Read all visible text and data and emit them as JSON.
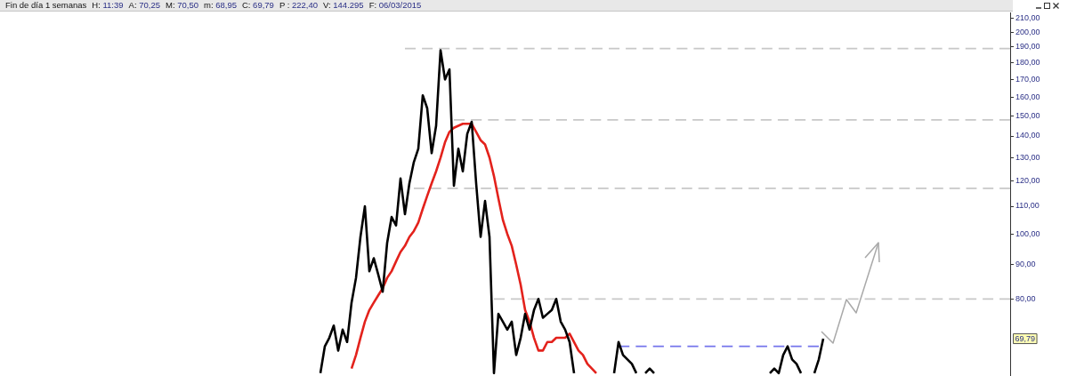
{
  "chart_data": {
    "type": "line",
    "title": "Fin de día 1 semanas",
    "annotations": [
      "H: 11:39",
      "A: 70,25",
      "M: 70,50",
      "m: 68,95",
      "C: 69,79",
      "P : 222,40",
      "V: 144.295",
      "F: 06/03/2015",
      {
        "text": "69,79",
        "y": 69.79
      }
    ],
    "log": true,
    "tick_labels": "y",
    "marker": "none",
    "ylim": [
      61.4,
      214
    ],
    "yticks": [
      {
        "value": 80,
        "label": "80,00"
      },
      {
        "value": 90,
        "label": "90,00"
      },
      {
        "value": 100,
        "label": "100,00"
      },
      {
        "value": 110,
        "label": "110,00"
      },
      {
        "value": 120,
        "label": "120,00"
      },
      {
        "value": 130,
        "label": "130,00"
      },
      {
        "value": 140,
        "label": "140,00"
      },
      {
        "value": 150,
        "label": "150,00"
      },
      {
        "value": 160,
        "label": "160,00"
      },
      {
        "value": 170,
        "label": "170,00"
      },
      {
        "value": 180,
        "label": "180,00"
      },
      {
        "value": 190,
        "label": "190,00"
      },
      {
        "value": 200,
        "label": "200,00"
      },
      {
        "value": 210,
        "label": "210,00"
      }
    ],
    "categories": [
      null,
      null,
      null,
      null,
      null,
      null,
      null,
      null,
      null,
      null,
      null,
      null,
      null,
      null,
      null,
      null,
      null,
      null,
      null,
      null,
      null,
      null,
      null,
      null,
      null,
      null,
      null,
      null,
      null,
      null,
      null,
      null,
      null,
      null,
      null,
      null,
      null,
      null,
      null,
      null,
      null,
      null,
      null,
      null,
      null,
      null,
      null,
      null,
      null,
      null,
      null,
      null,
      null,
      null,
      null,
      null,
      null,
      null,
      null,
      null,
      null,
      null,
      null,
      null,
      null,
      null,
      null,
      null,
      null,
      null,
      null,
      null,
      null,
      null,
      null,
      null,
      null,
      null,
      null,
      null,
      null,
      null,
      null,
      null,
      null,
      null,
      null,
      null,
      null,
      null,
      null,
      null,
      null,
      null,
      null,
      null,
      null,
      null,
      null,
      null,
      null,
      null,
      null,
      null,
      null,
      null,
      null,
      null,
      null,
      null,
      null,
      null,
      null,
      null,
      null,
      null,
      null,
      null,
      null,
      null,
      null,
      null,
      null,
      null,
      null,
      null,
      null,
      null,
      null,
      null,
      null,
      null,
      null,
      null,
      null,
      null,
      null,
      null,
      null,
      null,
      null,
      null,
      null,
      null,
      null,
      null,
      null,
      null,
      null,
      null,
      null,
      null,
      null,
      null,
      null,
      null,
      null,
      null,
      null,
      null,
      null,
      null,
      null,
      null,
      null,
      null,
      null,
      null,
      null,
      null,
      null,
      null,
      null,
      null,
      null,
      null,
      null,
      null,
      null,
      null,
      null,
      null,
      null,
      null,
      null,
      null,
      null,
      null,
      null,
      null,
      null,
      null,
      null,
      null,
      null,
      null,
      null,
      null,
      null,
      null,
      null,
      null,
      null,
      null,
      null,
      null,
      null,
      null,
      null,
      null,
      null,
      null,
      null,
      null,
      null,
      null,
      null,
      null,
      null,
      null,
      null,
      null,
      null,
      null,
      null,
      null,
      null,
      null
    ],
    "series": [
      {
        "color": "#000000",
        "values": [
          null,
          null,
          null,
          null,
          null,
          null,
          null,
          null,
          null,
          null,
          null,
          null,
          null,
          null,
          null,
          null,
          null,
          null,
          null,
          null,
          null,
          null,
          null,
          null,
          null,
          null,
          null,
          null,
          null,
          null,
          null,
          null,
          null,
          null,
          null,
          null,
          null,
          null,
          null,
          null,
          null,
          null,
          null,
          null,
          null,
          null,
          null,
          null,
          null,
          null,
          null,
          null,
          null,
          null,
          null,
          null,
          null,
          null,
          null,
          null,
          null,
          null,
          null,
          null,
          null,
          null,
          null,
          null,
          null,
          null,
          null,
          null,
          62,
          68,
          70,
          73,
          67,
          72,
          69,
          79,
          86,
          99,
          110,
          88,
          92,
          87,
          82,
          97,
          106,
          103,
          121,
          107,
          119,
          128,
          134,
          161,
          154,
          132,
          145,
          188,
          170,
          176,
          118,
          134,
          124,
          141,
          147,
          119,
          99,
          112,
          99,
          62,
          76,
          74,
          72,
          74,
          66,
          70,
          76,
          72,
          77,
          80,
          75,
          76,
          77,
          80,
          74,
          72,
          69,
          62,
          null,
          null,
          null,
          null,
          null,
          null,
          null,
          null,
          62,
          69,
          66,
          65,
          64,
          62,
          null,
          62,
          63,
          62,
          null,
          null,
          null,
          null,
          null,
          null,
          null,
          null,
          null,
          null,
          null,
          null,
          null,
          null,
          null,
          null,
          null,
          null,
          null,
          null,
          null,
          null,
          null,
          null,
          null,
          62,
          63,
          62,
          66,
          68,
          65,
          64,
          62,
          null,
          null,
          62,
          65,
          69.79,
          null,
          null,
          null,
          null,
          null,
          null,
          null,
          null,
          null,
          null,
          null,
          null,
          null,
          null,
          null,
          null,
          null,
          null,
          null,
          null,
          null,
          null,
          null,
          null,
          null,
          null,
          null,
          null,
          null,
          null,
          null,
          null,
          null,
          null,
          null,
          null,
          null,
          null,
          null,
          null,
          null,
          null
        ]
      },
      {
        "color": "#e3221c",
        "values": [
          null,
          null,
          null,
          null,
          null,
          null,
          null,
          null,
          null,
          null,
          null,
          null,
          null,
          null,
          null,
          null,
          null,
          null,
          null,
          null,
          null,
          null,
          null,
          null,
          null,
          null,
          null,
          null,
          null,
          null,
          null,
          null,
          null,
          null,
          null,
          null,
          null,
          null,
          null,
          null,
          null,
          null,
          null,
          null,
          null,
          null,
          null,
          null,
          null,
          null,
          null,
          null,
          null,
          null,
          null,
          null,
          null,
          null,
          null,
          null,
          null,
          null,
          null,
          null,
          null,
          null,
          null,
          null,
          null,
          null,
          null,
          null,
          null,
          null,
          null,
          null,
          null,
          null,
          null,
          63,
          66,
          70,
          74,
          77,
          79,
          81,
          83,
          86,
          88,
          91,
          94,
          96,
          99,
          101,
          104,
          109,
          114,
          119,
          124,
          130,
          137,
          142,
          144,
          145,
          146,
          146,
          146,
          142,
          138,
          136,
          130,
          122,
          113,
          105,
          100,
          96,
          90,
          84,
          77,
          74,
          70,
          67,
          67,
          69,
          69,
          70,
          70,
          70,
          71,
          69,
          67,
          66,
          64,
          63,
          62,
          null,
          null,
          null,
          null,
          null,
          null,
          null,
          null,
          null,
          null,
          null,
          null,
          null,
          null,
          null,
          null,
          null,
          null,
          null,
          null,
          null,
          null,
          null,
          null,
          null,
          null,
          null,
          null,
          null,
          null,
          null,
          null,
          null,
          null,
          null,
          null,
          null,
          null,
          null,
          null,
          null,
          null,
          null,
          null,
          null,
          null,
          null,
          null,
          null,
          null,
          null,
          null,
          null,
          null,
          null,
          null,
          null,
          null,
          null,
          null,
          null,
          null,
          null,
          null,
          null,
          null,
          null,
          null,
          null,
          null,
          null,
          null,
          null,
          null,
          null,
          null,
          null,
          null,
          null,
          null,
          null,
          null,
          null,
          null,
          null,
          null,
          null,
          null,
          null,
          null,
          null,
          null,
          null
        ]
      },
      {
        "color": "#c8c8c8",
        "line_style": "dashed",
        "values": [
          null,
          null,
          null,
          null,
          null,
          null,
          null,
          null,
          null,
          null,
          null,
          null,
          null,
          null,
          null,
          null,
          null,
          null,
          null,
          null,
          null,
          null,
          null,
          null,
          null,
          null,
          null,
          null,
          null,
          null,
          null,
          null,
          null,
          null,
          null,
          null,
          null,
          null,
          null,
          null,
          null,
          null,
          null,
          null,
          null,
          null,
          null,
          null,
          null,
          null,
          null,
          null,
          null,
          null,
          null,
          null,
          null,
          null,
          null,
          null,
          null,
          null,
          null,
          null,
          null,
          null,
          null,
          null,
          null,
          null,
          null,
          null,
          null,
          null,
          null,
          null,
          null,
          null,
          null,
          null,
          null,
          null,
          null,
          null,
          null,
          null,
          null,
          null,
          null,
          null,
          null,
          189,
          189,
          189,
          189,
          189,
          189,
          189,
          189,
          189,
          189,
          189,
          189,
          189,
          189,
          189,
          189,
          189,
          189,
          189,
          189,
          189,
          189,
          189,
          189,
          189,
          189,
          189,
          189,
          189,
          189,
          189,
          189,
          189,
          189,
          189,
          189,
          189,
          189,
          189,
          189,
          189,
          189,
          189,
          189,
          189,
          189,
          189,
          189,
          189,
          189,
          189,
          189,
          189,
          189,
          189,
          189,
          189,
          189,
          189,
          189,
          189,
          189,
          189,
          189,
          189,
          189,
          189,
          189,
          189,
          189,
          189,
          189,
          189,
          189,
          189,
          189,
          189,
          189,
          189,
          189,
          189,
          189,
          189,
          189,
          189,
          189,
          189,
          189,
          189,
          189,
          189,
          189,
          189,
          189,
          189,
          189,
          189,
          189,
          189,
          189,
          189,
          189,
          189,
          189,
          189,
          189,
          189,
          189,
          189,
          189,
          189,
          189,
          189,
          189,
          189,
          189,
          189,
          189,
          189,
          189,
          189,
          189,
          189,
          189,
          189,
          189,
          189,
          189,
          189,
          189,
          189,
          189,
          189,
          189,
          189,
          189,
          189
        ]
      },
      {
        "color": "#c8c8c8",
        "line_style": "dashed",
        "values": [
          null,
          null,
          null,
          null,
          null,
          null,
          null,
          null,
          null,
          null,
          null,
          null,
          null,
          null,
          null,
          null,
          null,
          null,
          null,
          null,
          null,
          null,
          null,
          null,
          null,
          null,
          null,
          null,
          null,
          null,
          null,
          null,
          null,
          null,
          null,
          null,
          null,
          null,
          null,
          null,
          null,
          null,
          null,
          null,
          null,
          null,
          null,
          null,
          null,
          null,
          null,
          null,
          null,
          null,
          null,
          null,
          null,
          null,
          null,
          null,
          null,
          null,
          null,
          null,
          null,
          null,
          null,
          null,
          null,
          null,
          null,
          null,
          null,
          null,
          null,
          null,
          null,
          null,
          null,
          null,
          null,
          null,
          null,
          null,
          null,
          null,
          null,
          null,
          null,
          null,
          null,
          null,
          null,
          null,
          null,
          null,
          null,
          null,
          null,
          null,
          null,
          null,
          148,
          148,
          148,
          148,
          148,
          148,
          148,
          148,
          148,
          148,
          148,
          148,
          148,
          148,
          148,
          148,
          148,
          148,
          148,
          148,
          148,
          148,
          148,
          148,
          148,
          148,
          148,
          148,
          148,
          148,
          148,
          148,
          148,
          148,
          148,
          148,
          148,
          148,
          148,
          148,
          148,
          148,
          148,
          148,
          148,
          148,
          148,
          148,
          148,
          148,
          148,
          148,
          148,
          148,
          148,
          148,
          148,
          148,
          148,
          148,
          148,
          148,
          148,
          148,
          148,
          148,
          148,
          148,
          148,
          148,
          148,
          148,
          148,
          148,
          148,
          148,
          148,
          148,
          148,
          148,
          148,
          148,
          148,
          148,
          148,
          148,
          148,
          148,
          148,
          148,
          148,
          148,
          148,
          148,
          148,
          148,
          148,
          148,
          148,
          148,
          148,
          148,
          148,
          148,
          148,
          148,
          148,
          148,
          148,
          148,
          148,
          148,
          148,
          148,
          148,
          148,
          148,
          148,
          148,
          148,
          148,
          148,
          148,
          148,
          148,
          148
        ]
      },
      {
        "color": "#c8c8c8",
        "line_style": "dashed",
        "values": [
          null,
          null,
          null,
          null,
          null,
          null,
          null,
          null,
          null,
          null,
          null,
          null,
          null,
          null,
          null,
          null,
          null,
          null,
          null,
          null,
          null,
          null,
          null,
          null,
          null,
          null,
          null,
          null,
          null,
          null,
          null,
          null,
          null,
          null,
          null,
          null,
          null,
          null,
          null,
          null,
          null,
          null,
          null,
          null,
          null,
          null,
          null,
          null,
          null,
          null,
          null,
          null,
          null,
          null,
          null,
          null,
          null,
          null,
          null,
          null,
          null,
          null,
          null,
          null,
          null,
          null,
          null,
          null,
          null,
          null,
          null,
          null,
          null,
          null,
          null,
          null,
          null,
          null,
          null,
          null,
          null,
          null,
          null,
          null,
          null,
          null,
          null,
          null,
          null,
          null,
          null,
          null,
          null,
          117,
          117,
          117,
          117,
          117,
          117,
          117,
          117,
          117,
          117,
          117,
          117,
          117,
          117,
          117,
          117,
          117,
          117,
          117,
          117,
          117,
          117,
          117,
          117,
          117,
          117,
          117,
          117,
          117,
          117,
          117,
          117,
          117,
          117,
          117,
          117,
          117,
          117,
          117,
          117,
          117,
          117,
          117,
          117,
          117,
          117,
          117,
          117,
          117,
          117,
          117,
          117,
          117,
          117,
          117,
          117,
          117,
          117,
          117,
          117,
          117,
          117,
          117,
          117,
          117,
          117,
          117,
          117,
          117,
          117,
          117,
          117,
          117,
          117,
          117,
          117,
          117,
          117,
          117,
          117,
          117,
          117,
          117,
          117,
          117,
          117,
          117,
          117,
          117,
          117,
          117,
          117,
          117,
          117,
          117,
          117,
          117,
          117,
          117,
          117,
          117,
          117,
          117,
          117,
          117,
          117,
          117,
          117,
          117,
          117,
          117,
          117,
          117,
          117,
          117,
          117,
          117,
          117,
          117,
          117,
          117,
          117,
          117,
          117,
          117,
          117,
          117,
          117,
          117,
          117,
          117,
          117,
          117,
          117,
          117
        ]
      },
      {
        "color": "#c8c8c8",
        "line_style": "dashed",
        "values": [
          null,
          null,
          null,
          null,
          null,
          null,
          null,
          null,
          null,
          null,
          null,
          null,
          null,
          null,
          null,
          null,
          null,
          null,
          null,
          null,
          null,
          null,
          null,
          null,
          null,
          null,
          null,
          null,
          null,
          null,
          null,
          null,
          null,
          null,
          null,
          null,
          null,
          null,
          null,
          null,
          null,
          null,
          null,
          null,
          null,
          null,
          null,
          null,
          null,
          null,
          null,
          null,
          null,
          null,
          null,
          null,
          null,
          null,
          null,
          null,
          null,
          null,
          null,
          null,
          null,
          null,
          null,
          null,
          null,
          null,
          null,
          null,
          null,
          null,
          null,
          null,
          null,
          null,
          null,
          null,
          null,
          null,
          null,
          null,
          null,
          null,
          null,
          null,
          null,
          null,
          null,
          null,
          null,
          null,
          null,
          null,
          null,
          null,
          null,
          null,
          null,
          null,
          null,
          null,
          null,
          null,
          null,
          null,
          null,
          null,
          null,
          80,
          80,
          80,
          80,
          80,
          80,
          80,
          80,
          80,
          80,
          80,
          80,
          80,
          80,
          80,
          80,
          80,
          80,
          80,
          80,
          80,
          80,
          80,
          80,
          80,
          80,
          80,
          80,
          80,
          80,
          80,
          80,
          80,
          80,
          80,
          80,
          80,
          80,
          80,
          80,
          80,
          80,
          80,
          80,
          80,
          80,
          80,
          80,
          80,
          80,
          80,
          80,
          80,
          80,
          80,
          80,
          80,
          80,
          80,
          80,
          80,
          80,
          80,
          80,
          80,
          80,
          80,
          80,
          80,
          80,
          80,
          80,
          80,
          80,
          80,
          80,
          80,
          80,
          80,
          80,
          80,
          80,
          80,
          80,
          80,
          80,
          80,
          80,
          80,
          80,
          80,
          80,
          80,
          80,
          80,
          80,
          80,
          80,
          80,
          80,
          80,
          80,
          80,
          80,
          80,
          80,
          80,
          80,
          80,
          80,
          80,
          80,
          80,
          80,
          80,
          80,
          80
        ]
      },
      {
        "color": "#7474ec",
        "line_style": "dashed",
        "values": [
          null,
          null,
          null,
          null,
          null,
          null,
          null,
          null,
          null,
          null,
          null,
          null,
          null,
          null,
          null,
          null,
          null,
          null,
          null,
          null,
          null,
          null,
          null,
          null,
          null,
          null,
          null,
          null,
          null,
          null,
          null,
          null,
          null,
          null,
          null,
          null,
          null,
          null,
          null,
          null,
          null,
          null,
          null,
          null,
          null,
          null,
          null,
          null,
          null,
          null,
          null,
          null,
          null,
          null,
          null,
          null,
          null,
          null,
          null,
          null,
          null,
          null,
          null,
          null,
          null,
          null,
          null,
          null,
          null,
          null,
          null,
          null,
          null,
          null,
          null,
          null,
          null,
          null,
          null,
          null,
          null,
          null,
          null,
          null,
          null,
          null,
          null,
          null,
          null,
          null,
          null,
          null,
          null,
          null,
          null,
          null,
          null,
          null,
          null,
          null,
          null,
          null,
          null,
          null,
          null,
          null,
          null,
          null,
          null,
          null,
          null,
          null,
          null,
          null,
          null,
          null,
          null,
          null,
          null,
          null,
          null,
          null,
          null,
          null,
          null,
          null,
          null,
          null,
          null,
          null,
          null,
          null,
          null,
          null,
          null,
          null,
          null,
          null,
          null,
          68,
          68,
          68,
          68,
          68,
          68,
          68,
          68,
          68,
          68,
          68,
          68,
          68,
          68,
          68,
          68,
          68,
          68,
          68,
          68,
          68,
          68,
          68,
          68,
          68,
          68,
          68,
          68,
          68,
          68,
          68,
          68,
          68,
          68,
          68,
          68,
          68,
          68,
          68,
          68,
          68,
          68,
          68,
          68,
          68,
          68,
          null,
          null,
          null,
          null,
          null,
          null,
          null,
          null,
          null,
          null,
          null,
          null,
          null,
          null,
          null,
          null,
          null,
          null,
          null,
          null,
          null,
          null,
          null,
          null,
          null,
          null,
          null,
          null,
          null,
          null,
          null,
          null,
          null,
          null,
          null,
          null,
          null,
          null,
          null,
          null,
          null,
          null,
          null
        ]
      }
    ]
  }
}
